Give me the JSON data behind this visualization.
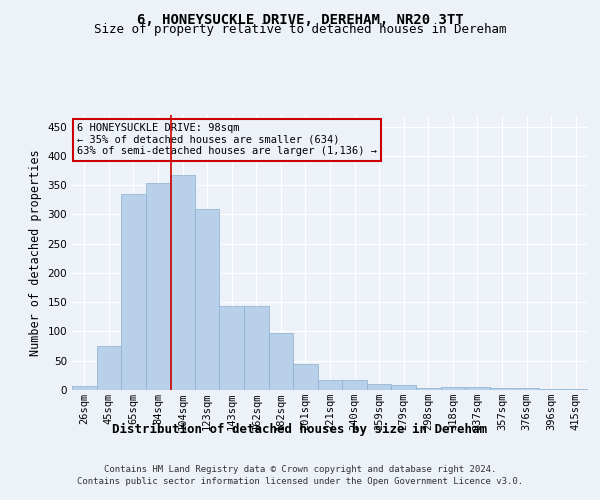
{
  "title": "6, HONEYSUCKLE DRIVE, DEREHAM, NR20 3TT",
  "subtitle": "Size of property relative to detached houses in Dereham",
  "xlabel": "Distribution of detached houses by size in Dereham",
  "ylabel": "Number of detached properties",
  "bar_labels": [
    "26sqm",
    "45sqm",
    "65sqm",
    "84sqm",
    "104sqm",
    "123sqm",
    "143sqm",
    "162sqm",
    "182sqm",
    "201sqm",
    "221sqm",
    "240sqm",
    "259sqm",
    "279sqm",
    "298sqm",
    "318sqm",
    "337sqm",
    "357sqm",
    "376sqm",
    "396sqm",
    "415sqm"
  ],
  "bar_values": [
    7,
    75,
    335,
    353,
    368,
    310,
    143,
    143,
    98,
    45,
    17,
    17,
    11,
    9,
    4,
    5,
    5,
    4,
    3,
    2,
    1
  ],
  "bar_color": "#b8d0ea",
  "bar_edge_color": "#8ab0d0",
  "vline_x": 3.52,
  "vline_color": "#cc0000",
  "ylim": [
    0,
    470
  ],
  "yticks": [
    0,
    50,
    100,
    150,
    200,
    250,
    300,
    350,
    400,
    450
  ],
  "annotation_text": "6 HONEYSUCKLE DRIVE: 98sqm\n← 35% of detached houses are smaller (634)\n63% of semi-detached houses are larger (1,136) →",
  "annotation_box_color": "#cc0000",
  "footer_line1": "Contains HM Land Registry data © Crown copyright and database right 2024.",
  "footer_line2": "Contains public sector information licensed under the Open Government Licence v3.0.",
  "bg_color": "#edf2f9",
  "grid_color": "#ffffff",
  "title_fontsize": 10,
  "subtitle_fontsize": 9,
  "tick_fontsize": 7.5,
  "ylabel_fontsize": 8.5,
  "xlabel_fontsize": 9,
  "footer_fontsize": 6.5
}
